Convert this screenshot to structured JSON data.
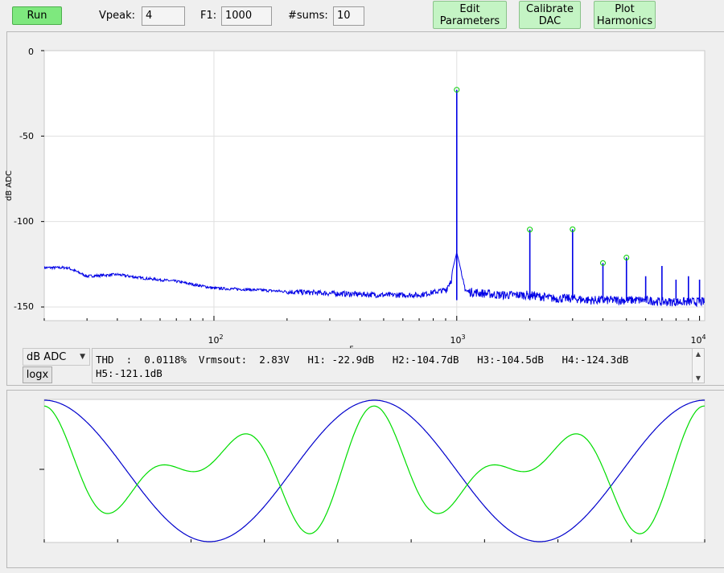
{
  "toolbar": {
    "run_label": "Run",
    "vpeak_label": "Vpeak:",
    "vpeak_value": "4",
    "f1_label": "F1:",
    "f1_value": "1000",
    "sums_label": "#sums:",
    "sums_value": "10",
    "edit_params_label_1": "Edit",
    "edit_params_label_2": "Parameters",
    "calibrate_label_1": "Calibrate",
    "calibrate_label_2": "DAC",
    "plot_harmonics_label_1": "Plot",
    "plot_harmonics_label_2": "Harmonics"
  },
  "spectrum": {
    "ylabel": "dB ADC",
    "xlabel": "F",
    "y_ticks": [
      "0",
      "-50",
      "-100",
      "-150"
    ],
    "x_ticks": [
      {
        "base": "10",
        "exp": "2"
      },
      {
        "base": "10",
        "exp": "3"
      },
      {
        "base": "10",
        "exp": "4"
      }
    ]
  },
  "controls": {
    "mode_select": "dB ADC",
    "logx_label": "logx",
    "thd_line1": "THD  :  0.0118%  Vrmsout:  2.83V   H1: -22.9dB   H2:-104.7dB   H3:-104.5dB   H4:-124.3dB",
    "thd_line2": "H5:-121.1dB"
  },
  "colors": {
    "spectrum_trace": "#0000e6",
    "harmonic_marker": "#00cc00",
    "waveform_in": "#0000cc",
    "waveform_err": "#00dd00"
  },
  "chart_data": [
    {
      "type": "line",
      "ylabel": "dB ADC",
      "xlabel": "F",
      "x_scale": "log",
      "xlim": [
        20,
        10500
      ],
      "ylim": [
        -158,
        0
      ],
      "grid": true,
      "series": [
        {
          "x": [
            20,
            25,
            30,
            40,
            50,
            70,
            100,
            150,
            200,
            300,
            500,
            700,
            900,
            980,
            1000,
            1020,
            1100,
            1500,
            1990,
            2000,
            2010,
            2500,
            2990,
            3000,
            3010,
            3500,
            4000,
            5000,
            6000,
            7000,
            8000,
            9000,
            10000
          ],
          "y": [
            -124,
            -127,
            -132,
            -131,
            -133,
            -135,
            -139,
            -140,
            -141,
            -142,
            -143,
            -143,
            -140,
            -130,
            -23,
            -130,
            -141,
            -143,
            -143,
            -105,
            -143,
            -145,
            -145,
            -105,
            -145,
            -146,
            -146,
            -146,
            -146,
            -147,
            -147,
            -147,
            -147
          ]
        },
        {
          "name": "harmonic markers",
          "x": [
            1000,
            2000,
            3000,
            4000,
            5000
          ],
          "y": [
            -22.9,
            -104.7,
            -104.5,
            -124.3,
            -121.1
          ]
        }
      ]
    },
    {
      "type": "line",
      "series": [
        {
          "x_cycles": 2,
          "amplitude": 1.0
        },
        {
          "components": [
            {
              "harmonic": 2,
              "amplitude": 0.6
            },
            {
              "harmonic": 3,
              "amplitude": 0.5
            }
          ]
        }
      ]
    }
  ]
}
